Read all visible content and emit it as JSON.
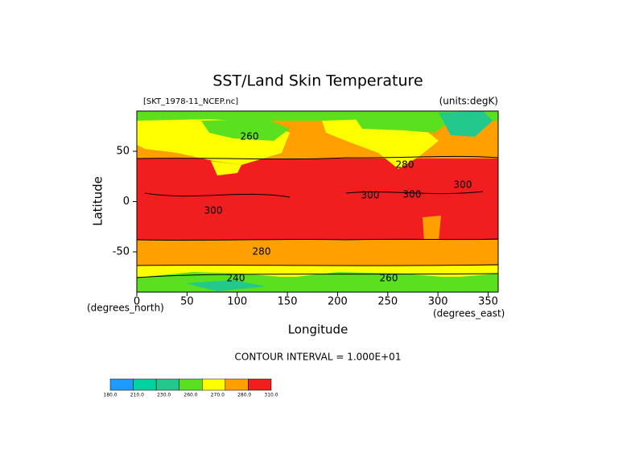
{
  "map": {
    "title": "SST/Land Skin Temperature",
    "file_label": "[SKT_1978-11_NCEP.nc]",
    "units_label": "(units:degK)",
    "y_axis_label": "Latitude",
    "x_axis_label": "Longitude",
    "y_unit_label": "(degrees_north)",
    "x_unit_label": "(degrees_east)",
    "xticks": [
      0,
      50,
      100,
      150,
      200,
      250,
      300,
      350
    ],
    "yticks": [
      -50,
      0,
      50
    ],
    "contour_labels": [
      "260",
      "280",
      "300",
      "300",
      "300",
      "300",
      "280",
      "240",
      "260"
    ],
    "contour_interval": "CONTOUR INTERVAL = 1.000E+01",
    "colorbar": {
      "colors": [
        "#1e9bff",
        "#00d2a0",
        "#22c88c",
        "#5ae01e",
        "#ffff00",
        "#ffa000",
        "#f01e1e"
      ],
      "labels": [
        "180.0",
        "210.0",
        "230.0",
        "260.0",
        "270.0",
        "280.0",
        "310.0"
      ]
    }
  }
}
